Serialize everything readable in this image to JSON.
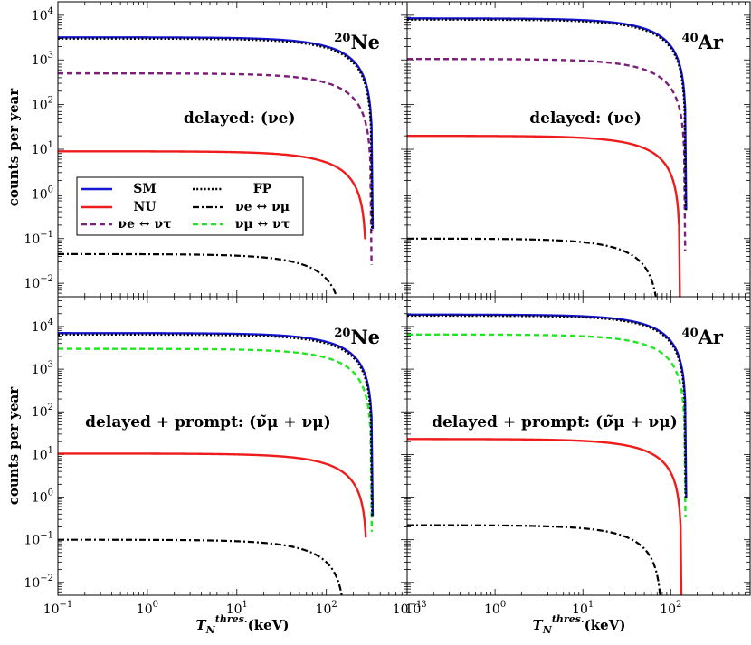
{
  "y_axis_label": "counts per year",
  "x_axis_label": "T_N^{thres.} (keV)",
  "x_axis_label_parts": {
    "T": "T",
    "sub": "N",
    "sup": "thres.",
    "unit": "(keV)"
  },
  "colors": {
    "SM": "#1515d6",
    "FP": "#000000",
    "NU": "#ee1c1c",
    "nue_numu": "#000000",
    "nue_nutau": "#7a1f7a",
    "numu_nutau": "#22e622"
  },
  "legend": {
    "placement": "panel-1 middle-left",
    "entries": [
      {
        "key": "SM",
        "label": "SM",
        "style": "solid"
      },
      {
        "key": "FP",
        "label": "FP",
        "style": "dotted"
      },
      {
        "key": "NU",
        "label": "NU",
        "style": "solid"
      },
      {
        "key": "nue_numu",
        "label": "νe ↔ νμ",
        "style": "dashdot"
      },
      {
        "key": "nue_nutau",
        "label": "νe ↔ ντ",
        "style": "dashed"
      },
      {
        "key": "numu_nutau",
        "label": "νμ ↔ ντ",
        "style": "dashed"
      }
    ]
  },
  "chart_data": [
    {
      "type": "line",
      "nucleus": {
        "mass": "20",
        "symbol": "Ne"
      },
      "channel": "delayed: (νe)",
      "xscale": "log",
      "yscale": "log",
      "xlim": [
        0.1,
        800
      ],
      "ylim": [
        0.005,
        20000
      ],
      "x_ticks": [
        "10^-1",
        "10^0",
        "10^1",
        "10^2",
        "10^3"
      ],
      "y_ticks": [
        "10^-2",
        "10^-1",
        "10^0",
        "10^1",
        "10^2",
        "10^3",
        "10^4"
      ],
      "series": [
        {
          "name": "SM",
          "plateau": 3200,
          "x_end": 330
        },
        {
          "name": "FP",
          "plateau": 3000,
          "x_end": 325
        },
        {
          "name": "NU",
          "plateau": 9,
          "x_end": 280
        },
        {
          "name": "νe ↔ ντ",
          "plateau": 500,
          "x_end": 320
        },
        {
          "name": "νe ↔ νμ",
          "plateau": 0.045,
          "x_end": 160
        }
      ]
    },
    {
      "type": "line",
      "nucleus": {
        "mass": "40",
        "symbol": "Ar"
      },
      "channel": "delayed: (νe)",
      "xscale": "log",
      "yscale": "log",
      "xlim": [
        0.1,
        800
      ],
      "ylim": [
        0.005,
        20000
      ],
      "x_ticks": [
        "10^-1",
        "10^0",
        "10^1",
        "10^2"
      ],
      "y_ticks": [],
      "series": [
        {
          "name": "SM",
          "plateau": 8500,
          "x_end": 150
        },
        {
          "name": "FP",
          "plateau": 8000,
          "x_end": 148
        },
        {
          "name": "NU",
          "plateau": 20,
          "x_end": 128
        },
        {
          "name": "νe ↔ ντ",
          "plateau": 1050,
          "x_end": 146
        },
        {
          "name": "νe ↔ νμ",
          "plateau": 0.1,
          "x_end": 75
        }
      ]
    },
    {
      "type": "line",
      "nucleus": {
        "mass": "20",
        "symbol": "Ne"
      },
      "channel": "delayed + prompt: (ν̃μ + νμ)",
      "xscale": "log",
      "yscale": "log",
      "xlim": [
        0.1,
        800
      ],
      "ylim": [
        0.005,
        50000
      ],
      "x_ticks": [
        "10^-1",
        "10^0",
        "10^1",
        "10^2",
        "10^3"
      ],
      "y_ticks": [
        "10^-2",
        "10^-1",
        "10^0",
        "10^1",
        "10^2",
        "10^3",
        "10^4"
      ],
      "series": [
        {
          "name": "SM",
          "plateau": 7000,
          "x_end": 330
        },
        {
          "name": "FP",
          "plateau": 6500,
          "x_end": 325
        },
        {
          "name": "νμ ↔ ντ",
          "plateau": 3000,
          "x_end": 322
        },
        {
          "name": "NU",
          "plateau": 10.5,
          "x_end": 285
        },
        {
          "name": "νe ↔ νμ",
          "plateau": 0.1,
          "x_end": 165
        }
      ]
    },
    {
      "type": "line",
      "nucleus": {
        "mass": "40",
        "symbol": "Ar"
      },
      "channel": "delayed + prompt: (ν̃μ + νμ)",
      "xscale": "log",
      "yscale": "log",
      "xlim": [
        0.1,
        800
      ],
      "ylim": [
        0.005,
        50000
      ],
      "x_ticks": [
        "10^-1",
        "10^0",
        "10^1",
        "10^2"
      ],
      "y_ticks": [],
      "series": [
        {
          "name": "SM",
          "plateau": 19000,
          "x_end": 150
        },
        {
          "name": "FP",
          "plateau": 18000,
          "x_end": 148
        },
        {
          "name": "νμ ↔ ντ",
          "plateau": 6500,
          "x_end": 147
        },
        {
          "name": "NU",
          "plateau": 23,
          "x_end": 133
        },
        {
          "name": "νe ↔ νμ",
          "plateau": 0.22,
          "x_end": 80
        }
      ]
    }
  ]
}
